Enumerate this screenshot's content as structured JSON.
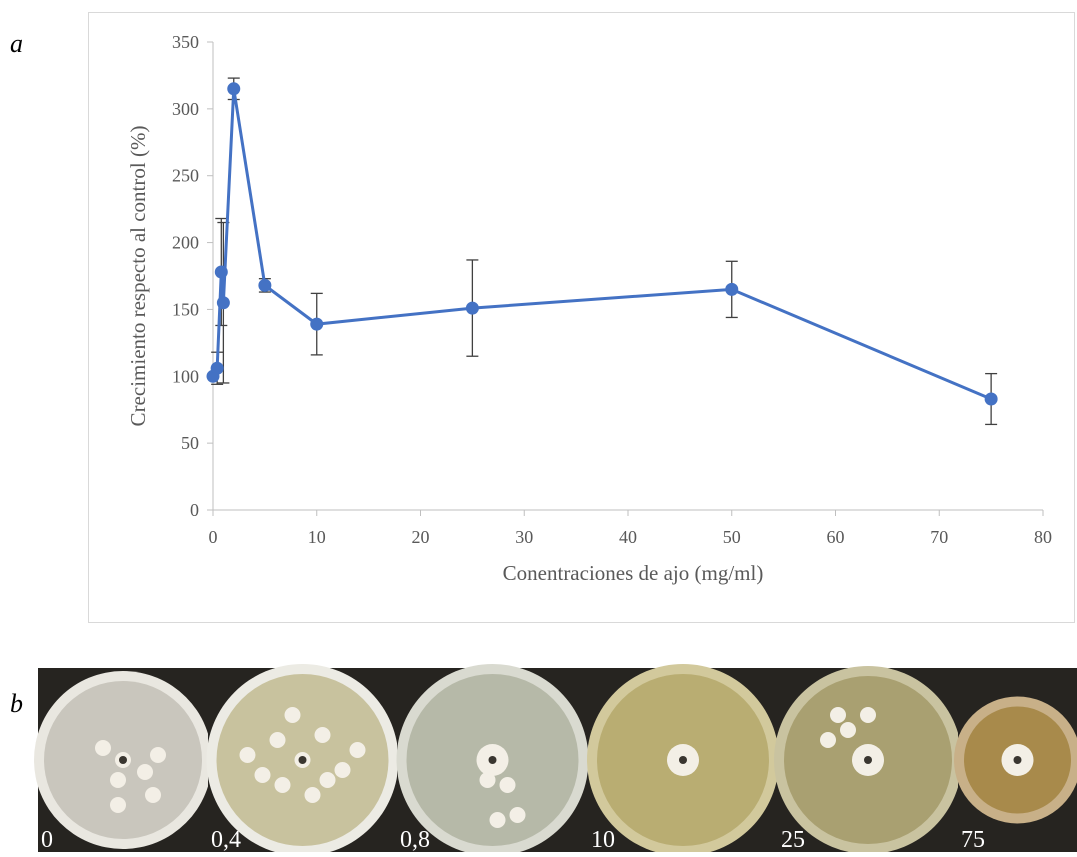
{
  "chart_data": {
    "type": "line",
    "xlabel": "Conentraciones de ajo (mg/ml)",
    "ylabel": "Crecimiento respecto al control (%)",
    "x": [
      0,
      0.4,
      0.8,
      1,
      2,
      5,
      10,
      25,
      50,
      75
    ],
    "series": [
      {
        "color": "#4472c4",
        "values": [
          100,
          106,
          178,
          155,
          315,
          168,
          139,
          151,
          165,
          83
        ],
        "errors": [
          0,
          12,
          40,
          60,
          8,
          5,
          23,
          36,
          21,
          19
        ]
      }
    ],
    "xlim": [
      0,
      80
    ],
    "xticks": [
      0,
      10,
      20,
      30,
      40,
      50,
      60,
      70,
      80
    ],
    "ylim": [
      0,
      350
    ],
    "yticks": [
      0,
      50,
      100,
      150,
      200,
      250,
      300,
      350
    ]
  },
  "panel_labels": [
    "a",
    "b"
  ],
  "plate_labels": [
    "0",
    "0,4",
    "0,8",
    "10",
    "25",
    "75"
  ]
}
